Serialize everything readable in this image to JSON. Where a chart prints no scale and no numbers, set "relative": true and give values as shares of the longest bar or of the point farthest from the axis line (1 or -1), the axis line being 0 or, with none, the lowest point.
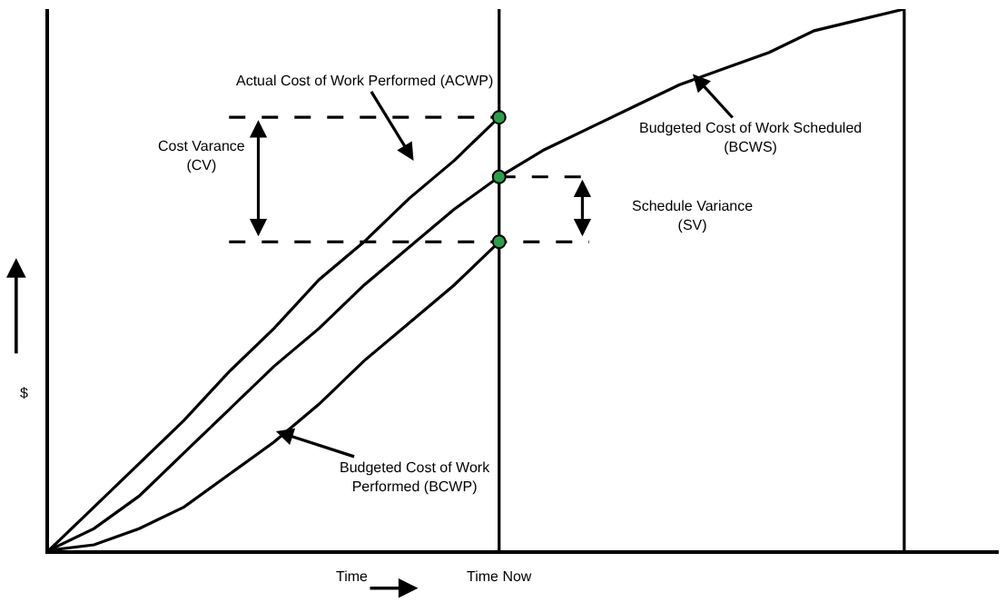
{
  "chart_data": {
    "type": "line",
    "relative": true,
    "xlabel": "Time",
    "ylabel": "$",
    "legend": false,
    "grid": false,
    "marker": "none",
    "line_style": "solid",
    "categories": [
      null,
      null,
      null,
      null,
      null,
      null,
      null,
      null,
      null,
      null,
      null,
      null,
      null,
      null,
      null,
      null,
      null,
      null,
      null,
      null
    ],
    "series": [
      {
        "color": "#000000",
        "values": [
          0,
          0.04,
          0.1,
          0.18,
          0.26,
          0.34,
          0.41,
          0.49,
          0.56,
          0.63,
          0.69,
          0.74,
          0.78,
          0.82,
          0.86,
          0.89,
          0.92,
          0.96,
          0.98,
          1
        ]
      },
      {
        "color": "#000000",
        "values": [
          0,
          0.08,
          0.16,
          0.24,
          0.33,
          0.41,
          0.5,
          0.57,
          0.65,
          0.72,
          0.8,
          null,
          null,
          null,
          null,
          null,
          null,
          null,
          null,
          null
        ]
      },
      {
        "color": "#000000",
        "values": [
          0,
          0.01,
          0.04,
          0.08,
          0.14,
          0.2,
          0.27,
          0.35,
          0.42,
          0.49,
          0.57,
          null,
          null,
          null,
          null,
          null,
          null,
          null,
          null,
          null
        ]
      }
    ],
    "ref_lines": [
      {
        "axis": "y",
        "value": 0.8,
        "line_style": "dashed",
        "color": "#000000"
      },
      {
        "axis": "y",
        "value": 0.69,
        "line_style": "dashed",
        "color": "#000000"
      },
      {
        "axis": "y",
        "value": 0.57,
        "line_style": "dashed",
        "color": "#000000"
      }
    ],
    "annotations": [
      "Actual Cost of Work Performed (ACWP)",
      "Budgeted Cost of Work Scheduled\n(BCWS)",
      "Budgeted Cost of Work\nPerformed (BCWP)",
      "Cost Varance\n(CV)",
      "Schedule Variance\n(SV)",
      "Time Now"
    ]
  }
}
